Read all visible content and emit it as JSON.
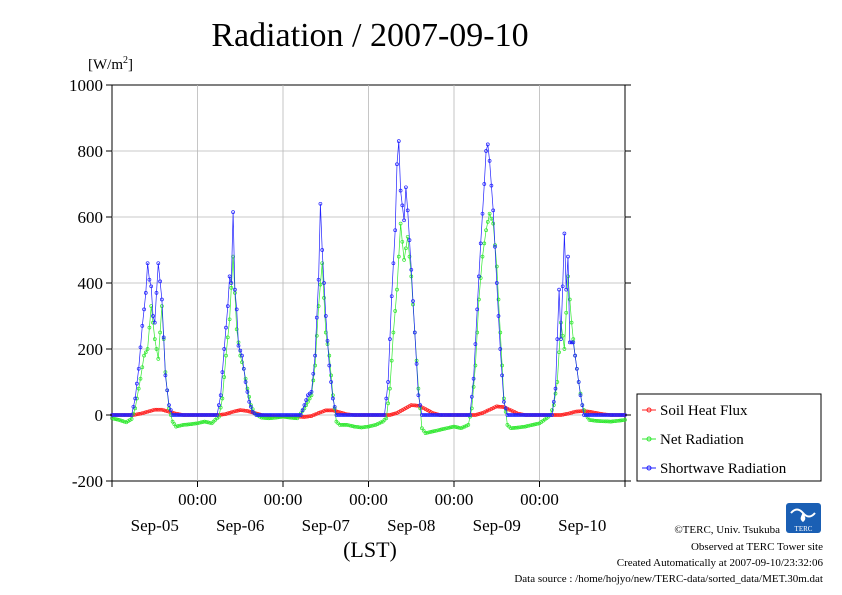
{
  "chart_data": {
    "type": "line",
    "title": "Radiation / 2007-09-10",
    "unit_label": "[W/m2]",
    "xlabel": "(LST)",
    "ylim": [
      -200,
      1000
    ],
    "yticks": [
      -200,
      0,
      200,
      400,
      600,
      800,
      1000
    ],
    "grid": true,
    "legend_position": "bottom-right",
    "x_start": "2007-09-04 00:00",
    "x_end": "2007-09-10 00:00",
    "time_ticks": [
      "00:00",
      "00:00",
      "00:00",
      "00:00",
      "00:00"
    ],
    "day_labels": [
      "Sep-05",
      "Sep-06",
      "Sep-07",
      "Sep-08",
      "Sep-09",
      "Sep-10"
    ],
    "series": [
      {
        "name": "Soil Heat Flux",
        "color": "#ff2020",
        "marker": "circle",
        "values": [
          [
            "2007-09-04 00:00",
            0
          ],
          [
            "2007-09-04 06:00",
            0
          ],
          [
            "2007-09-04 08:00",
            4
          ],
          [
            "2007-09-04 10:00",
            10
          ],
          [
            "2007-09-04 12:00",
            16
          ],
          [
            "2007-09-04 14:00",
            16
          ],
          [
            "2007-09-04 16:00",
            10
          ],
          [
            "2007-09-04 18:00",
            4
          ],
          [
            "2007-09-04 20:00",
            0
          ],
          [
            "2007-09-05 06:00",
            0
          ],
          [
            "2007-09-05 08:00",
            3
          ],
          [
            "2007-09-05 10:00",
            10
          ],
          [
            "2007-09-05 12:00",
            15
          ],
          [
            "2007-09-05 14:00",
            12
          ],
          [
            "2007-09-05 16:00",
            6
          ],
          [
            "2007-09-05 18:00",
            0
          ],
          [
            "2007-09-05 20:00",
            -3
          ],
          [
            "2007-09-06 04:00",
            -5
          ],
          [
            "2007-09-06 06:00",
            -6
          ],
          [
            "2007-09-06 08:00",
            -3
          ],
          [
            "2007-09-06 10:00",
            6
          ],
          [
            "2007-09-06 12:00",
            14
          ],
          [
            "2007-09-06 14:00",
            14
          ],
          [
            "2007-09-06 16:00",
            8
          ],
          [
            "2007-09-06 18:00",
            2
          ],
          [
            "2007-09-06 20:00",
            0
          ],
          [
            "2007-09-07 06:00",
            0
          ],
          [
            "2007-09-07 08:00",
            6
          ],
          [
            "2007-09-07 10:00",
            18
          ],
          [
            "2007-09-07 12:00",
            30
          ],
          [
            "2007-09-07 14:00",
            28
          ],
          [
            "2007-09-07 16:00",
            18
          ],
          [
            "2007-09-07 18:00",
            6
          ],
          [
            "2007-09-07 20:00",
            0
          ],
          [
            "2007-09-08 06:00",
            0
          ],
          [
            "2007-09-08 08:00",
            6
          ],
          [
            "2007-09-08 10:00",
            16
          ],
          [
            "2007-09-08 12:00",
            26
          ],
          [
            "2007-09-08 14:00",
            24
          ],
          [
            "2007-09-08 16:00",
            14
          ],
          [
            "2007-09-08 18:00",
            4
          ],
          [
            "2007-09-08 20:00",
            0
          ],
          [
            "2007-09-09 06:00",
            0
          ],
          [
            "2007-09-09 08:00",
            4
          ],
          [
            "2007-09-09 10:00",
            10
          ],
          [
            "2007-09-09 12:00",
            12
          ],
          [
            "2007-09-09 14:00",
            10
          ],
          [
            "2007-09-09 16:00",
            6
          ],
          [
            "2007-09-09 18:00",
            2
          ],
          [
            "2007-09-09 20:00",
            0
          ],
          [
            "2007-09-10 00:00",
            0
          ]
        ]
      },
      {
        "name": "Net Radiation",
        "color": "#30e830",
        "marker": "circle",
        "values": [
          [
            "2007-09-04 00:00",
            -10
          ],
          [
            "2007-09-04 02:00",
            -15
          ],
          [
            "2007-09-04 04:00",
            -22
          ],
          [
            "2007-09-04 05:30",
            -12
          ],
          [
            "2007-09-04 06:30",
            20
          ],
          [
            "2007-09-04 08:00",
            110
          ],
          [
            "2007-09-04 09:00",
            180
          ],
          [
            "2007-09-04 10:00",
            200
          ],
          [
            "2007-09-04 11:00",
            330
          ],
          [
            "2007-09-04 12:00",
            230
          ],
          [
            "2007-09-04 13:00",
            170
          ],
          [
            "2007-09-04 14:00",
            330
          ],
          [
            "2007-09-04 15:00",
            130
          ],
          [
            "2007-09-04 16:00",
            20
          ],
          [
            "2007-09-04 17:00",
            -20
          ],
          [
            "2007-09-04 18:00",
            -35
          ],
          [
            "2007-09-04 20:00",
            -30
          ],
          [
            "2007-09-04 22:00",
            -28
          ],
          [
            "2007-09-05 00:00",
            -25
          ],
          [
            "2007-09-05 02:00",
            -20
          ],
          [
            "2007-09-05 04:00",
            -25
          ],
          [
            "2007-09-05 06:00",
            -5
          ],
          [
            "2007-09-05 07:00",
            50
          ],
          [
            "2007-09-05 08:00",
            180
          ],
          [
            "2007-09-05 09:00",
            290
          ],
          [
            "2007-09-05 10:00",
            480
          ],
          [
            "2007-09-05 11:00",
            260
          ],
          [
            "2007-09-05 12:00",
            180
          ],
          [
            "2007-09-05 13:00",
            140
          ],
          [
            "2007-09-05 14:00",
            80
          ],
          [
            "2007-09-05 15:00",
            30
          ],
          [
            "2007-09-05 16:00",
            5
          ],
          [
            "2007-09-05 18:00",
            -8
          ],
          [
            "2007-09-05 20:00",
            -10
          ],
          [
            "2007-09-05 22:00",
            -8
          ],
          [
            "2007-09-06 00:00",
            -5
          ],
          [
            "2007-09-06 02:00",
            -8
          ],
          [
            "2007-09-06 04:00",
            -10
          ],
          [
            "2007-09-06 06:00",
            20
          ],
          [
            "2007-09-06 07:00",
            40
          ],
          [
            "2007-09-06 08:00",
            60
          ],
          [
            "2007-09-06 09:00",
            150
          ],
          [
            "2007-09-06 10:00",
            330
          ],
          [
            "2007-09-06 11:00",
            460
          ],
          [
            "2007-09-06 12:00",
            250
          ],
          [
            "2007-09-06 13:00",
            180
          ],
          [
            "2007-09-06 14:00",
            60
          ],
          [
            "2007-09-06 15:00",
            -20
          ],
          [
            "2007-09-06 16:00",
            -30
          ],
          [
            "2007-09-06 18:00",
            -30
          ],
          [
            "2007-09-06 20:00",
            -35
          ],
          [
            "2007-09-06 22:00",
            -38
          ],
          [
            "2007-09-07 00:00",
            -35
          ],
          [
            "2007-09-07 02:00",
            -30
          ],
          [
            "2007-09-07 04:00",
            -20
          ],
          [
            "2007-09-07 05:00",
            -10
          ],
          [
            "2007-09-07 06:00",
            80
          ],
          [
            "2007-09-07 07:00",
            250
          ],
          [
            "2007-09-07 08:00",
            380
          ],
          [
            "2007-09-07 09:00",
            580
          ],
          [
            "2007-09-07 10:00",
            470
          ],
          [
            "2007-09-07 11:00",
            540
          ],
          [
            "2007-09-07 12:00",
            420
          ],
          [
            "2007-09-07 13:00",
            250
          ],
          [
            "2007-09-07 14:00",
            80
          ],
          [
            "2007-09-07 15:00",
            -40
          ],
          [
            "2007-09-07 16:00",
            -55
          ],
          [
            "2007-09-07 18:00",
            -50
          ],
          [
            "2007-09-07 20:00",
            -45
          ],
          [
            "2007-09-07 22:00",
            -40
          ],
          [
            "2007-09-08 00:00",
            -35
          ],
          [
            "2007-09-08 02:00",
            -40
          ],
          [
            "2007-09-08 04:00",
            -30
          ],
          [
            "2007-09-08 05:00",
            20
          ],
          [
            "2007-09-08 06:00",
            150
          ],
          [
            "2007-09-08 07:00",
            350
          ],
          [
            "2007-09-08 08:00",
            480
          ],
          [
            "2007-09-08 09:00",
            560
          ],
          [
            "2007-09-08 10:00",
            610
          ],
          [
            "2007-09-08 11:00",
            580
          ],
          [
            "2007-09-08 12:00",
            450
          ],
          [
            "2007-09-08 13:00",
            250
          ],
          [
            "2007-09-08 14:00",
            50
          ],
          [
            "2007-09-08 15:00",
            -30
          ],
          [
            "2007-09-08 16:00",
            -40
          ],
          [
            "2007-09-08 18:00",
            -38
          ],
          [
            "2007-09-08 20:00",
            -35
          ],
          [
            "2007-09-08 22:00",
            -30
          ],
          [
            "2007-09-09 00:00",
            -25
          ],
          [
            "2007-09-09 02:00",
            -10
          ],
          [
            "2007-09-09 03:00",
            0
          ],
          [
            "2007-09-09 04:00",
            30
          ],
          [
            "2007-09-09 05:00",
            100
          ],
          [
            "2007-09-09 06:00",
            280
          ],
          [
            "2007-09-09 07:00",
            200
          ],
          [
            "2007-09-09 08:00",
            420
          ],
          [
            "2007-09-09 09:00",
            280
          ],
          [
            "2007-09-09 10:00",
            180
          ],
          [
            "2007-09-09 11:00",
            100
          ],
          [
            "2007-09-09 12:00",
            30
          ],
          [
            "2007-09-09 13:00",
            0
          ],
          [
            "2007-09-09 14:00",
            -15
          ],
          [
            "2007-09-09 16:00",
            -18
          ],
          [
            "2007-09-09 20:00",
            -20
          ],
          [
            "2007-09-10 00:00",
            -15
          ]
        ]
      },
      {
        "name": "Shortwave Radiation",
        "color": "#2020ff",
        "marker": "circle",
        "values": [
          [
            "2007-09-04 00:00",
            0
          ],
          [
            "2007-09-04 05:30",
            0
          ],
          [
            "2007-09-04 06:30",
            50
          ],
          [
            "2007-09-04 07:30",
            140
          ],
          [
            "2007-09-04 08:30",
            270
          ],
          [
            "2007-09-04 09:30",
            370
          ],
          [
            "2007-09-04 10:00",
            460
          ],
          [
            "2007-09-04 10:30",
            410
          ],
          [
            "2007-09-04 11:00",
            390
          ],
          [
            "2007-09-04 11:30",
            300
          ],
          [
            "2007-09-04 12:00",
            280
          ],
          [
            "2007-09-04 13:00",
            460
          ],
          [
            "2007-09-04 14:00",
            350
          ],
          [
            "2007-09-04 15:00",
            120
          ],
          [
            "2007-09-04 16:00",
            30
          ],
          [
            "2007-09-04 17:00",
            0
          ],
          [
            "2007-09-05 05:30",
            0
          ],
          [
            "2007-09-05 06:30",
            60
          ],
          [
            "2007-09-05 07:30",
            200
          ],
          [
            "2007-09-05 08:30",
            330
          ],
          [
            "2007-09-05 09:00",
            420
          ],
          [
            "2007-09-05 09:30",
            400
          ],
          [
            "2007-09-05 10:00",
            615
          ],
          [
            "2007-09-05 10:30",
            380
          ],
          [
            "2007-09-05 11:00",
            320
          ],
          [
            "2007-09-05 11:30",
            210
          ],
          [
            "2007-09-05 12:30",
            180
          ],
          [
            "2007-09-05 13:30",
            100
          ],
          [
            "2007-09-05 14:30",
            40
          ],
          [
            "2007-09-05 15:30",
            10
          ],
          [
            "2007-09-05 16:30",
            0
          ],
          [
            "2007-09-06 05:00",
            0
          ],
          [
            "2007-09-06 06:00",
            30
          ],
          [
            "2007-09-06 07:00",
            60
          ],
          [
            "2007-09-06 08:00",
            70
          ],
          [
            "2007-09-06 09:00",
            180
          ],
          [
            "2007-09-06 10:00",
            410
          ],
          [
            "2007-09-06 10:30",
            640
          ],
          [
            "2007-09-06 11:00",
            500
          ],
          [
            "2007-09-06 12:00",
            300
          ],
          [
            "2007-09-06 13:00",
            150
          ],
          [
            "2007-09-06 14:00",
            50
          ],
          [
            "2007-09-06 15:00",
            0
          ],
          [
            "2007-09-07 04:30",
            0
          ],
          [
            "2007-09-07 05:30",
            100
          ],
          [
            "2007-09-07 06:30",
            360
          ],
          [
            "2007-09-07 07:30",
            560
          ],
          [
            "2007-09-07 08:00",
            760
          ],
          [
            "2007-09-07 08:30",
            830
          ],
          [
            "2007-09-07 09:00",
            680
          ],
          [
            "2007-09-07 10:00",
            590
          ],
          [
            "2007-09-07 10:30",
            690
          ],
          [
            "2007-09-07 11:00",
            620
          ],
          [
            "2007-09-07 12:00",
            440
          ],
          [
            "2007-09-07 13:00",
            250
          ],
          [
            "2007-09-07 14:00",
            60
          ],
          [
            "2007-09-07 15:00",
            0
          ],
          [
            "2007-09-08 04:30",
            0
          ],
          [
            "2007-09-08 05:30",
            110
          ],
          [
            "2007-09-08 06:30",
            320
          ],
          [
            "2007-09-08 07:30",
            520
          ],
          [
            "2007-09-08 08:00",
            610
          ],
          [
            "2007-09-08 08:30",
            700
          ],
          [
            "2007-09-08 09:00",
            800
          ],
          [
            "2007-09-08 09:30",
            820
          ],
          [
            "2007-09-08 10:00",
            770
          ],
          [
            "2007-09-08 11:00",
            620
          ],
          [
            "2007-09-08 12:00",
            400
          ],
          [
            "2007-09-08 13:00",
            200
          ],
          [
            "2007-09-08 14:00",
            40
          ],
          [
            "2007-09-08 15:00",
            0
          ],
          [
            "2007-09-09 03:30",
            0
          ],
          [
            "2007-09-09 04:30",
            80
          ],
          [
            "2007-09-09 05:30",
            380
          ],
          [
            "2007-09-09 06:00",
            230
          ],
          [
            "2007-09-09 07:00",
            550
          ],
          [
            "2007-09-09 07:30",
            380
          ],
          [
            "2007-09-09 08:00",
            480
          ],
          [
            "2007-09-09 08:30",
            220
          ],
          [
            "2007-09-09 09:30",
            220
          ],
          [
            "2007-09-09 10:30",
            140
          ],
          [
            "2007-09-09 11:30",
            60
          ],
          [
            "2007-09-09 12:30",
            0
          ],
          [
            "2007-09-10 00:00",
            0
          ]
        ]
      }
    ]
  },
  "footer": {
    "copyright": "©TERC, Univ. Tsukuba",
    "observed": "Observed at TERC Tower site",
    "created": "Created Automatically at 2007-09-10/23:32:06",
    "source": "Data source : /home/hojyo/new/TERC-data/sorted_data/MET.30m.dat",
    "logo_text": "TERC"
  }
}
